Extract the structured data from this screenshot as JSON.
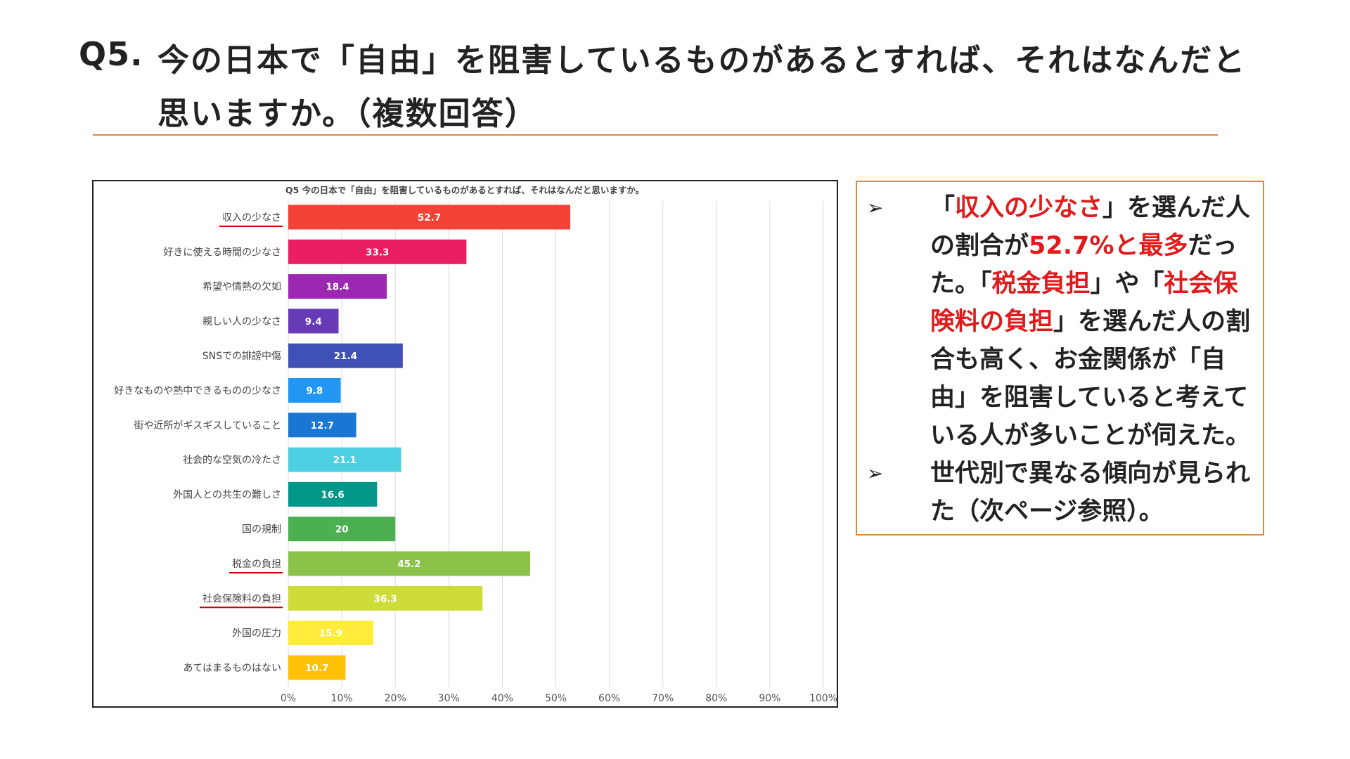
{
  "heading": {
    "number": "Q5.",
    "line1": "今の日本で「自由」を阻害しているものがあるとすれば、それはなんだと",
    "line2": "思いますか。（複数回答）"
  },
  "chart_data": {
    "type": "bar",
    "orientation": "horizontal",
    "title": "Q5 今の日本で「自由」を阻害しているものがあるとすれば、それはなんだと思いますか。",
    "categories": [
      "収入の少なさ",
      "好きに使える時間の少なさ",
      "希望や情熱の欠如",
      "親しい人の少なさ",
      "SNSでの誹謗中傷",
      "好きなものや熱中できるものの少なさ",
      "街や近所がギスギスしていること",
      "社会的な空気の冷たさ",
      "外国人との共生の難しさ",
      "国の規制",
      "税金の負担",
      "社会保険料の負担",
      "外国の圧力",
      "あてはまるものはない"
    ],
    "values": [
      52.7,
      33.3,
      18.4,
      9.4,
      21.4,
      9.8,
      12.7,
      21.1,
      16.6,
      20,
      45.2,
      36.3,
      15.9,
      10.7
    ],
    "value_labels": [
      "52.7",
      "33.3",
      "18.4",
      "9.4",
      "21.4",
      "9.8",
      "12.7",
      "21.1",
      "16.6",
      "20",
      "45.2",
      "36.3",
      "15.9",
      "10.7"
    ],
    "colors": [
      "#f44336",
      "#e91e63",
      "#9c27b0",
      "#673ab7",
      "#3f51b5",
      "#2196f3",
      "#1976d2",
      "#4dd0e1",
      "#009688",
      "#4caf50",
      "#8bc34a",
      "#cddc39",
      "#ffeb3b",
      "#ffc107"
    ],
    "underlined_categories": [
      "収入の少なさ",
      "税金の負担",
      "社会保険料の負担"
    ],
    "underline_color": "#cc0000",
    "xlim": [
      0,
      100
    ],
    "xticks": [
      "0%",
      "10%",
      "20%",
      "30%",
      "40%",
      "50%",
      "60%",
      "70%",
      "80%",
      "90%",
      "100%"
    ],
    "grid": true,
    "legend": "none"
  },
  "notes": {
    "bullet_symbol": "➢",
    "b1_s1": "「",
    "b1_s2": "収入の少なさ",
    "b1_s3": "」を選んだ人の割合が",
    "b1_s4": "52.7%と最多",
    "b1_s5": "だった。「",
    "b1_s6": "税金負担",
    "b1_s7": "」や「",
    "b1_s8": "社会保険料の負担",
    "b1_s9": "」を選んだ人の割合も高く、お金関係が「自由」を阻害していると考えている人が多いことが伺えた。",
    "b2": "世代別で異なる傾向が見られた（次ページ参照）。",
    "highlight_color": "#e01b1b"
  }
}
